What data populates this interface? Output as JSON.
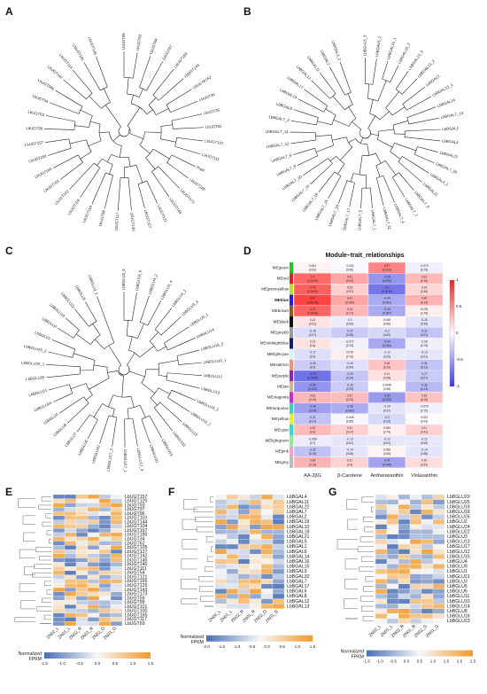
{
  "panel_labels": [
    "A",
    "B",
    "C",
    "D",
    "E",
    "F",
    "G"
  ],
  "colors": {
    "low": "#4a6fb5",
    "mid": "#f7f7f7",
    "high": "#f19a2a",
    "red": "#e32b2b",
    "blue": "#3b3bd6"
  },
  "tree_A": {
    "leaves": [
      "LbUGT96",
      "LbUGT93",
      "LbUGT84",
      "LbUGT87",
      "LbUGT169",
      "LbUGT144",
      "LbUGT87A2",
      "LbUGT34",
      "LbUGT35",
      "LbUGT62",
      "LbUGT110",
      "LbUGT111",
      "PutA",
      "LbUGT180",
      "LbUGT173",
      "LbUGT140",
      "LbUGT121",
      "LbUGT127",
      "LbUGT130",
      "LbUGT117",
      "LbUGT98",
      "LbUGT116",
      "LbUGT104",
      "LbUGT102",
      "LbUGT101",
      "LbUGT100",
      "LbUGT166",
      "LbUGT157",
      "LbUGT99",
      "LbUGT53",
      "LbUGT54",
      "LbUGT96b",
      "LbUGT142",
      "LbUGT114",
      "LbUGT181",
      "LbUGT145"
    ],
    "highlight_blue": "LbUGT87A2",
    "highlight_green": "PutA"
  },
  "tree_B": {
    "leaves": [
      "LbBGAL6_3",
      "LbBGAL6_2",
      "LbBGAL10_1",
      "LbBGAL10_2",
      "LbBGAL13_3",
      "LbBGAL13_2",
      "LbBGAL5",
      "LbBGAL13_1",
      "LbBGAL14",
      "LbBGAL7_13",
      "LbBGAL1",
      "LbBGAL4",
      "LbBGAL22",
      "LbBGAL7_20",
      "LbBGAL3_1",
      "LbBGAL21",
      "LbBGAL7_9",
      "LbBGAL7_7",
      "LbBGAL7_4",
      "LbBGAL7_11",
      "LbBGAL7_1",
      "LbBGAL7_5",
      "LbBGAL7_17",
      "LbBGAL7_18",
      "LbBGAL7_15",
      "LbBGAL7_19",
      "LbBGAL7_16",
      "LbBGAL7_10",
      "LbBGAL7_8",
      "LbBGAL7_6",
      "LbBGAL7_12",
      "LbBGAL7_14",
      "LbBGAL7_2",
      "LbBGAL8",
      "LbBGAL19",
      "LbBGAL17",
      "LbBGAL12",
      "LbBGAL11",
      "LbBGAL2",
      "LbBGAL3_2"
    ]
  },
  "tree_C": {
    "leaves": [
      "LbBGLU3_5",
      "LbBGLU3_6",
      "LbBGLU4_2",
      "LbBGLU3_4",
      "LbBGLU4_1",
      "LbBGLU3_3",
      "LbBGLU3_1",
      "LbBGLU14",
      "LbBGLU18_2",
      "LbBGLU18_1",
      "LbBGLU15",
      "LbBGLU13",
      "LbBGLU16_2",
      "LbBGLU16_1",
      "LbBGLU12",
      "LbBGLU11",
      "LbBGLU23",
      "LbBGLU10",
      "LbBGLU17_3",
      "LbBGLU17_1",
      "LbBGLU17_2",
      "LbBGLU20",
      "LbBGLU6",
      "LbBGLU7",
      "LbBGLU8",
      "LbBGLU9",
      "LbBGLU24",
      "LbBGLU21",
      "LbBGLU26",
      "LbBGLU25_1",
      "LbBGLU25_2",
      "LbBGLU1",
      "LbBGLU2",
      "LbBGLU19",
      "LbBGLU22",
      "LbBGLU5",
      "LbBGLU3_2"
    ]
  },
  "module_trait": {
    "title": "Module–trait_relationships",
    "traits": [
      "AA-2βG",
      "β-Carotene",
      "Antheraxanthin",
      "Violaxanthin"
    ],
    "modules": [
      {
        "name": "MEgreen",
        "color": "#1ec91e"
      },
      {
        "name": "MEred",
        "color": "#e52020"
      },
      {
        "name": "MEgreenyellow",
        "color": "#b4e51e"
      },
      {
        "name": "MEblue",
        "color": "#1e1ee5"
      },
      {
        "name": "MEbrown",
        "color": "#9a5a1e"
      },
      {
        "name": "MEblack",
        "color": "#111111"
      },
      {
        "name": "MEgrey60",
        "color": "#999999"
      },
      {
        "name": "MEmidnightblue",
        "color": "#1a1a70"
      },
      {
        "name": "MElightcyan",
        "color": "#d4f5f5"
      },
      {
        "name": "MEsalmon",
        "color": "#f59070"
      },
      {
        "name": "MEpurple",
        "color": "#9020c0"
      },
      {
        "name": "MEtan",
        "color": "#d2b48c"
      },
      {
        "name": "MEmagenta",
        "color": "#e020e0"
      },
      {
        "name": "MEturquoise",
        "color": "#30d5c8"
      },
      {
        "name": "MEyellow",
        "color": "#f0f020"
      },
      {
        "name": "MEcyan",
        "color": "#20e0e0"
      },
      {
        "name": "MElightgreen",
        "color": "#90ee90"
      },
      {
        "name": "MEpink",
        "color": "#f5a0c8"
      },
      {
        "name": "MEgrey",
        "color": "#bbbbbb"
      }
    ],
    "cells": [
      [
        [
          "0.061",
          "(0.81)"
        ],
        [
          "-0.034",
          "(0.89)"
        ],
        [
          "0.57",
          "(0.013)"
        ],
        [
          "-0.079",
          "(0.75)"
        ]
      ],
      [
        [
          "0.7",
          "(0.0012)"
        ],
        [
          "0.41",
          "(0.09)"
        ],
        [
          "-0.54",
          "(0.019)"
        ],
        [
          "0.32",
          "(0.19)"
        ]
      ],
      [
        [
          "0.74",
          "(0.0005)"
        ],
        [
          "0.23",
          "(0.37)"
        ],
        [
          "-0.7",
          "(0.0013)"
        ],
        [
          "0.19",
          "(0.46)"
        ]
      ],
      [
        [
          "0.87",
          "(3.4e-06)"
        ],
        [
          "0.41",
          "(0.094)"
        ],
        [
          "-0.43",
          "(0.062)"
        ],
        [
          "0.36",
          "(0.14)"
        ]
      ],
      [
        [
          "0.72",
          "(0.0008)"
        ],
        [
          "0.34",
          "(0.17)"
        ],
        [
          "-0.43",
          "(0.067)"
        ],
        [
          "0.078",
          "(0.76)"
        ]
      ],
      [
        [
          "0.13",
          "(0.61)"
        ],
        [
          "-0.1",
          "(0.69)"
        ],
        [
          "0.048",
          "(0.85)"
        ],
        [
          "-0.15",
          "(0.55)"
        ]
      ],
      [
        [
          "-0.18",
          "(0.47)"
        ],
        [
          "-0.27",
          "(0.28)"
        ],
        [
          "-0.2",
          "(0.42)"
        ],
        [
          "-0.31",
          "(0.21)"
        ]
      ],
      [
        [
          "0.13",
          "(0.6)"
        ],
        [
          "-0.077",
          "(0.76)"
        ],
        [
          "-0.44",
          "(0.066)"
        ],
        [
          "-0.08",
          "(0.75)"
        ]
      ],
      [
        [
          "-0.17",
          "(0.5)"
        ],
        [
          "0.079",
          "(0.76)"
        ],
        [
          "-0.12",
          "(0.63)"
        ],
        [
          "-0.13",
          "(0.61)"
        ]
      ],
      [
        [
          "-0.26",
          "(0.3)"
        ],
        [
          "-0.16",
          "(0.54)"
        ],
        [
          "0.28",
          "(0.26)"
        ],
        [
          "-0.31",
          "(0.21)"
        ]
      ],
      [
        [
          "-0.73",
          "(0.0006)"
        ],
        [
          "-0.29",
          "(0.24)"
        ],
        [
          "0.14",
          "(0.58)"
        ],
        [
          "-0.27",
          "(0.27)"
        ]
      ],
      [
        [
          "-0.55",
          "(0.022)"
        ],
        [
          "-0.26",
          "(0.29)"
        ],
        [
          "0.0048",
          "(0.98)"
        ],
        [
          "-0.36",
          "(0.14)"
        ]
      ],
      [
        [
          "0.33",
          "(0.19)"
        ],
        [
          "0.31",
          "(0.22)"
        ],
        [
          "-0.52",
          "(0.025)"
        ],
        [
          "0.28",
          "(0.26)"
        ]
      ],
      [
        [
          "-0.49",
          "(0.04)"
        ],
        [
          "-0.42",
          "(0.083)"
        ],
        [
          "-0.14",
          "(0.57)"
        ],
        [
          "-0.079",
          "(0.76)"
        ]
      ],
      [
        [
          "-0.31",
          "(0.21)"
        ],
        [
          "-0.045",
          "(0.86)"
        ],
        [
          "-0.2",
          "(0.23)"
        ],
        [
          "0.023",
          "(0.93)"
        ]
      ],
      [
        [
          "0.32",
          "(0.2)"
        ],
        [
          "0.22",
          "(0.37)"
        ],
        [
          "0.069",
          "(0.79)"
        ],
        [
          "0.21",
          "(0.41)"
        ]
      ],
      [
        [
          "-0.098",
          "(0.7)"
        ],
        [
          "-0.13",
          "(0.61)"
        ],
        [
          "-0.13",
          "(0.61)"
        ],
        [
          "-0.12",
          "(0.65)"
        ]
      ],
      [
        [
          "-0.32",
          "(0.19)"
        ],
        [
          "-0.14",
          "(0.58)"
        ],
        [
          "0.056",
          "(0.83)"
        ],
        [
          "-0.14",
          "(0.58)"
        ]
      ],
      [
        [
          "0.36",
          "(0.14)"
        ],
        [
          "0.21",
          "(0.4)"
        ],
        [
          "-0.47",
          "(0.049)"
        ],
        [
          "0.16",
          "(0.52)"
        ]
      ]
    ],
    "scale_ticks": [
      "1",
      "0.5",
      "0",
      "-0.5",
      "-1"
    ]
  },
  "heat_E": {
    "columns": [
      "ZN02_L",
      "ZN01_L",
      "ZN02_R",
      "ZN01_R",
      "ZN02_G",
      "ZN01_G"
    ],
    "rows": [
      "LbUGT157",
      "LbUGT120",
      "LbUGT93",
      "LbUGT97",
      "LbUGT96",
      "LbUGT110",
      "LbUGT144",
      "LbUGT104",
      "LbUGT167",
      "LbUGT180",
      "LbUGT34",
      "LbUGT62",
      "LbUGT105",
      "LbUGT127",
      "LbUGT142",
      "LbUGT145",
      "LbUGT140",
      "LbUGT111",
      "LbUGT54",
      "LbUGT121",
      "LbUGT166",
      "LbUGT125",
      "LbUGT143",
      "LbUGT173",
      "LbUGT59",
      "LbUGT99",
      "LbUGT101",
      "LbUGT100",
      "LbUGT165",
      "LbUGT117",
      "LbUGT69"
    ],
    "scale_title": "Normalized\nFPKM",
    "scale_ticks": [
      "-1.5",
      "-1.0",
      "-0.5",
      "0.0",
      "0.5",
      "1.0",
      "1.5"
    ]
  },
  "heat_F": {
    "columns": [
      "ZN02_L",
      "ZN01_L",
      "ZN02_R",
      "ZN01_R",
      "ZN02_G",
      "ZN01_G"
    ],
    "rows": [
      "LbBGAL4",
      "LbBGAL11",
      "LbBGAL22",
      "LbBGAL7",
      "LbBGAL2",
      "LbBGAL19",
      "LbBGAL10",
      "LbBGAL18",
      "LbBGAL21",
      "LbBGAL5",
      "LbBGAL1",
      "LbBGAL9",
      "LbBGAL14",
      "LbBGAL16",
      "LbBGAL15",
      "LbBGAL3",
      "LbBGAL20",
      "LbBGAL7",
      "LbBGAL17",
      "LbBGAL6",
      "LbBGAL8",
      "LbBGAL12",
      "LbBGAL13"
    ],
    "scale_title": "Normalized\nFPKM",
    "scale_ticks": [
      "-2.0",
      "-1.5",
      "-1.0",
      "-0.5",
      "0.0",
      "0.5",
      "1.0",
      "1.5"
    ]
  },
  "heat_G": {
    "columns": [
      "ZN02_L",
      "ZN01_L",
      "ZN02_R",
      "ZN01_R",
      "ZN02_G",
      "ZN01_G"
    ],
    "rows": [
      "LbBGLU20",
      "LbBGLU25",
      "LbBGLU19",
      "LbBGLU18",
      "LbBGLU26",
      "LbBGLU2",
      "LbBGLU24",
      "LbBGLU22",
      "LbBGLU3",
      "LbBGLU13",
      "LbBGLU17",
      "LbBGLU12",
      "LbBGLU15",
      "LbBGLU4",
      "LbBGLU9",
      "LbBGLU1",
      "LbBGLU21",
      "LbBGLU3",
      "LbBGLU5",
      "LbBGLU6",
      "LbBGLU11",
      "LbBGLU10",
      "LbBGLU14",
      "LbBGLU8",
      "LbBGLU16",
      "LbBGLU23"
    ],
    "scale_title": "Normalized\nFPKM",
    "scale_ticks": [
      "-1.5",
      "-1.0",
      "-0.5",
      "0.0",
      "0.5",
      "1.0",
      "1.5",
      "2.0",
      "2.5"
    ]
  }
}
